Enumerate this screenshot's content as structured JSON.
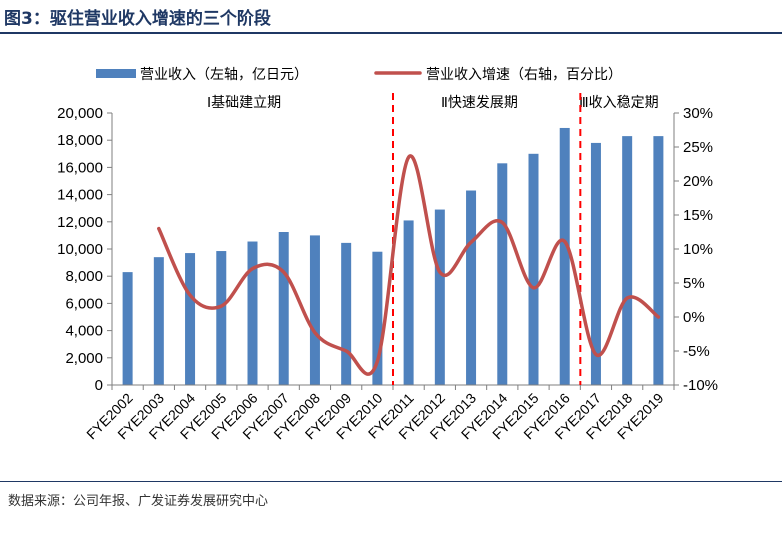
{
  "figure": {
    "title": "图3：驱住营业收入增速的三个阶段",
    "source": "数据来源：公司年报、广发证券发展研究中心"
  },
  "colors": {
    "bar": "#4f81bd",
    "line": "#c0504d",
    "divider": "#ff0000",
    "axis": "#7f7f7f",
    "text": "#000000",
    "title": "#1f3864"
  },
  "chart_data": {
    "type": "bar",
    "categories": [
      "FYE2002",
      "FYE2003",
      "FYE2004",
      "FYE2005",
      "FYE2006",
      "FYE2007",
      "FYE2008",
      "FYE2009",
      "FYE2010",
      "FYE2011",
      "FYE2012",
      "FYE2013",
      "FYE2014",
      "FYE2015",
      "FYE2016",
      "FYE2017",
      "FYE2018",
      "FYE2019"
    ],
    "series": [
      {
        "name": "营业收入（左轴，亿日元）",
        "type": "bar",
        "axis": "left",
        "values": [
          8300,
          9400,
          9700,
          9850,
          10550,
          11250,
          11000,
          10450,
          9800,
          12100,
          12900,
          14300,
          16300,
          17000,
          18900,
          17800,
          18300,
          18300
        ]
      },
      {
        "name": "营业收入增速（右轴，百分比）",
        "type": "line",
        "axis": "right",
        "values": [
          null,
          13.0,
          3.2,
          1.6,
          7.1,
          6.6,
          -2.3,
          -5.0,
          -6.5,
          23.5,
          6.6,
          11.0,
          13.9,
          4.3,
          11.1,
          -5.5,
          2.8,
          0.0
        ]
      }
    ],
    "left_axis": {
      "ylim": [
        0,
        20000
      ],
      "ticks": [
        0,
        2000,
        4000,
        6000,
        8000,
        10000,
        12000,
        14000,
        16000,
        18000,
        20000
      ],
      "tick_labels": [
        "0",
        "2,000",
        "4,000",
        "6,000",
        "8,000",
        "10,000",
        "12,000",
        "14,000",
        "16,000",
        "18,000",
        "20,000"
      ]
    },
    "right_axis": {
      "ylim": [
        -10,
        30
      ],
      "ticks": [
        -10,
        -5,
        0,
        5,
        10,
        15,
        20,
        25,
        30
      ],
      "tick_labels": [
        "-10%",
        "-5%",
        "0%",
        "5%",
        "10%",
        "15%",
        "20%",
        "25%",
        "30%"
      ]
    },
    "phases": [
      {
        "label": "Ⅰ基础建立期",
        "start": "FYE2002",
        "end": "FYE2010"
      },
      {
        "label": "Ⅱ快速发展期",
        "start": "FYE2011",
        "end": "FYE2016"
      },
      {
        "label": "Ⅲ收入稳定期",
        "start": "FYE2017",
        "end": "FYE2019"
      }
    ],
    "dividers_after": [
      "FYE2010",
      "FYE2016"
    ],
    "legend_position": "top",
    "grid": false
  }
}
